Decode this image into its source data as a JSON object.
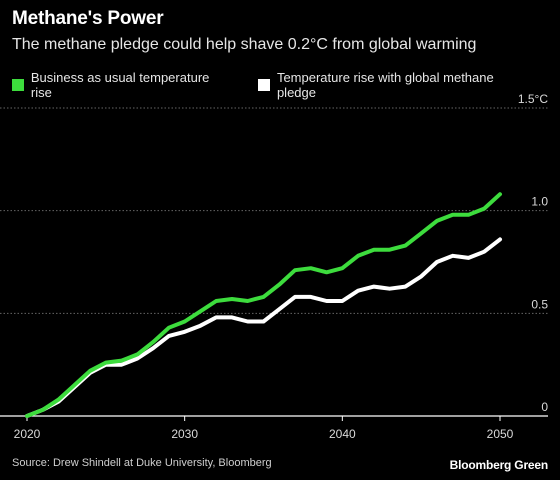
{
  "title": "Methane's Power",
  "subtitle": "The methane pledge could help shave 0.2°C from global warming",
  "source": "Source: Drew Shindell at Duke University, Bloomberg",
  "brand": "Bloomberg Green",
  "chart_data": {
    "type": "line",
    "xlim": [
      2020,
      2050
    ],
    "ylim": [
      0,
      1.5
    ],
    "x_ticks": [
      2020,
      2030,
      2040,
      2050
    ],
    "x_tick_labels": [
      "2020",
      "2030",
      "2040",
      "2050"
    ],
    "y_ticks": [
      0,
      0.5,
      1.0,
      1.5
    ],
    "y_tick_labels": [
      "0",
      "0.5",
      "1.0",
      "1.5°C"
    ],
    "grid": true,
    "legend_position": "top-left",
    "x": [
      2020,
      2021,
      2022,
      2023,
      2024,
      2025,
      2026,
      2027,
      2028,
      2029,
      2030,
      2031,
      2032,
      2033,
      2034,
      2035,
      2036,
      2037,
      2038,
      2039,
      2040,
      2041,
      2042,
      2043,
      2044,
      2045,
      2046,
      2047,
      2048,
      2049,
      2050
    ],
    "series": [
      {
        "name": "Business as usual temperature rise",
        "color": "#3ddc3d",
        "values": [
          0.0,
          0.03,
          0.08,
          0.15,
          0.22,
          0.26,
          0.27,
          0.3,
          0.36,
          0.43,
          0.46,
          0.51,
          0.56,
          0.57,
          0.56,
          0.58,
          0.64,
          0.71,
          0.72,
          0.7,
          0.72,
          0.78,
          0.81,
          0.81,
          0.83,
          0.89,
          0.95,
          0.98,
          0.98,
          1.01,
          1.08
        ]
      },
      {
        "name": "Temperature rise with global methane pledge",
        "color": "#ffffff",
        "values": [
          0.0,
          0.03,
          0.07,
          0.14,
          0.21,
          0.25,
          0.25,
          0.28,
          0.33,
          0.39,
          0.41,
          0.44,
          0.48,
          0.48,
          0.46,
          0.46,
          0.52,
          0.58,
          0.58,
          0.56,
          0.56,
          0.61,
          0.63,
          0.62,
          0.63,
          0.68,
          0.75,
          0.78,
          0.77,
          0.8,
          0.86
        ]
      }
    ]
  }
}
